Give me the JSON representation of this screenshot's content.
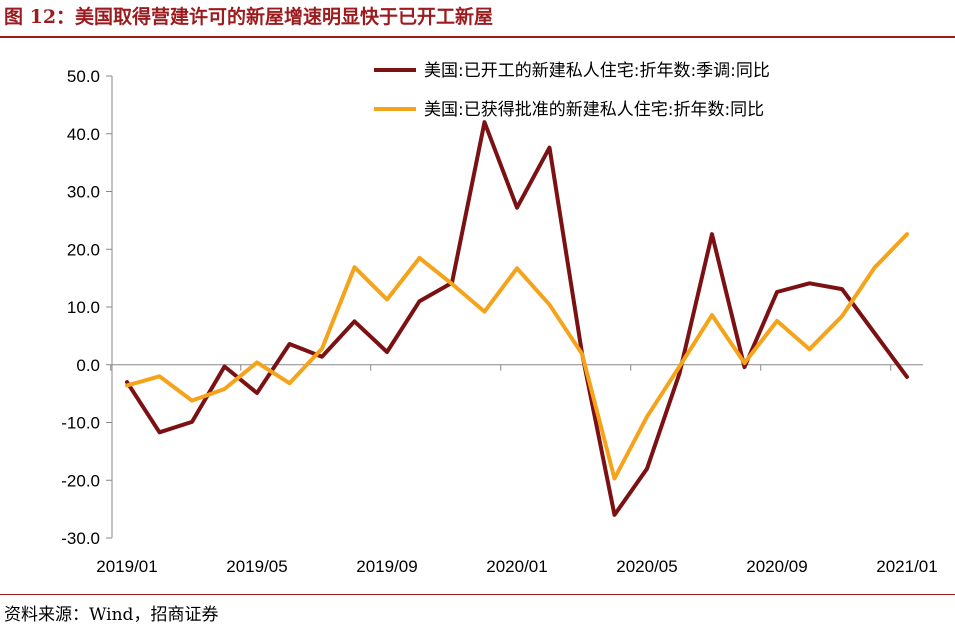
{
  "figure": {
    "title": "图 12：美国取得营建许可的新屋增速明显快于已开工新屋",
    "source": "资料来源：Wind，招商证券"
  },
  "chart_data": {
    "type": "line",
    "title": "",
    "xlabel": "",
    "ylabel": "",
    "ylim": [
      -30,
      50
    ],
    "yticks": [
      "50.0",
      "40.0",
      "30.0",
      "20.0",
      "10.0",
      "0.0",
      "-10.0",
      "-20.0",
      "-30.0"
    ],
    "x": [
      "2019/01",
      "2019/02",
      "2019/03",
      "2019/04",
      "2019/05",
      "2019/06",
      "2019/07",
      "2019/08",
      "2019/09",
      "2019/10",
      "2019/11",
      "2019/12",
      "2020/01",
      "2020/02",
      "2020/03",
      "2020/04",
      "2020/05",
      "2020/06",
      "2020/07",
      "2020/08",
      "2020/09",
      "2020/10",
      "2020/11",
      "2020/12",
      "2021/01"
    ],
    "xtick_labels": [
      "2019/01",
      "2019/05",
      "2019/09",
      "2020/01",
      "2020/05",
      "2020/09",
      "2021/01"
    ],
    "legend_position": "top-right",
    "grid": false,
    "series": [
      {
        "name": "美国:已开工的新建私人住宅:折年数:季调:同比",
        "color": "#7b1113",
        "values": [
          -3.0,
          -11.7,
          -9.9,
          -0.3,
          -4.9,
          3.6,
          1.4,
          7.5,
          2.2,
          11.0,
          14.2,
          42.0,
          27.2,
          37.6,
          2.0,
          -26.0,
          -18.0,
          -1.5,
          22.6,
          -0.4,
          12.6,
          14.1,
          13.1,
          5.5,
          -2.1
        ]
      },
      {
        "name": "美国:已获得批准的新建私人住宅:折年数:同比",
        "color": "#f5a31a",
        "values": [
          -3.6,
          -2.0,
          -6.2,
          -4.2,
          0.4,
          -3.2,
          2.8,
          16.9,
          11.3,
          18.5,
          14.0,
          9.2,
          16.7,
          10.4,
          1.9,
          -19.7,
          -9.0,
          -0.3,
          8.6,
          0.3,
          7.6,
          2.7,
          8.4,
          16.8,
          22.6
        ]
      }
    ]
  }
}
